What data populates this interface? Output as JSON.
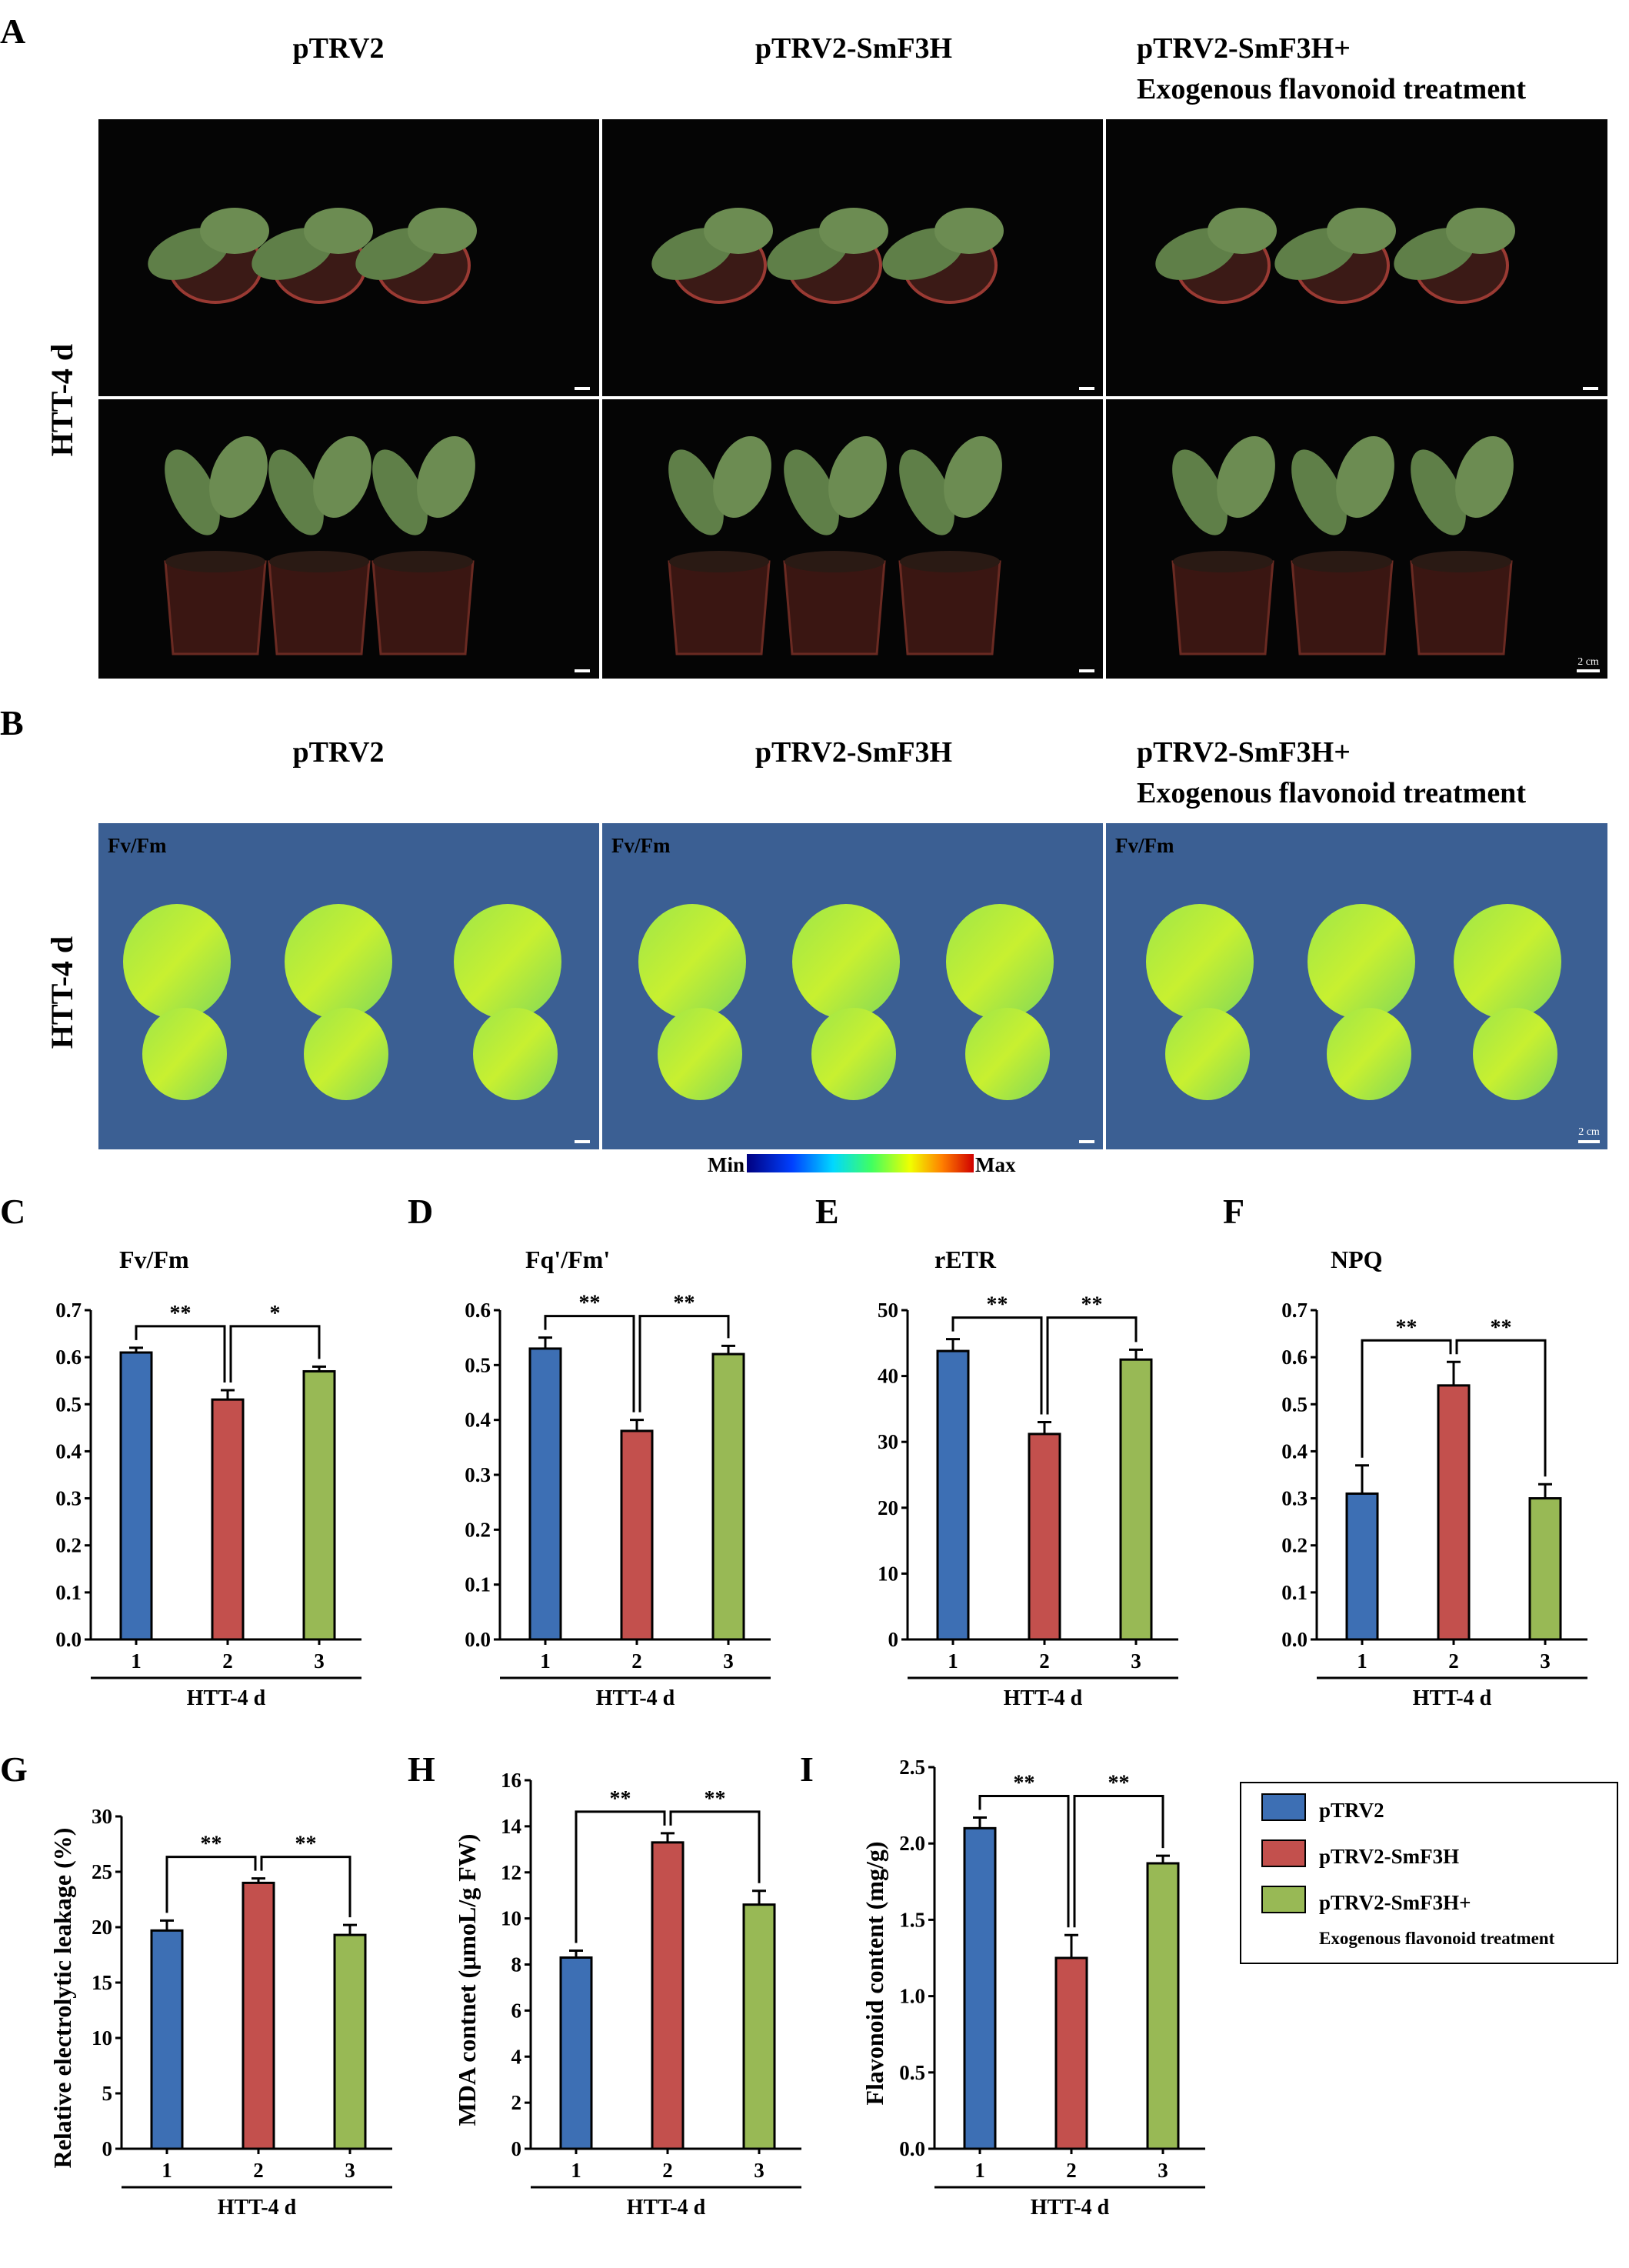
{
  "panel_letters": [
    "A",
    "B",
    "C",
    "D",
    "E",
    "F",
    "G",
    "H",
    "I"
  ],
  "panel_a": {
    "col_titles": [
      "pTRV2",
      "pTRV2-SmF3H",
      "pTRV2-SmF3H+",
      "Exogenous flavonoid treatment"
    ],
    "row_label": "HTT-4 d",
    "scale_text": "2 cm"
  },
  "panel_b": {
    "col_titles": [
      "pTRV2",
      "pTRV2-SmF3H",
      "pTRV2-SmF3H+",
      "Exogenous flavonoid treatment"
    ],
    "row_label": "HTT-4 d",
    "param_label": "Fv/Fm",
    "scale_text": "2 cm",
    "colorbar_min": "Min",
    "colorbar_max": "Max"
  },
  "colors": {
    "pTRV2": "#3d6fb4",
    "pTRV2-SmF3H": "#c3504d",
    "pTRV2-SmF3H+": "#98b955"
  },
  "legend": {
    "items": [
      "pTRV2",
      "pTRV2-SmF3H",
      "pTRV2-SmF3H+",
      "Exogenous flavonoid treatment"
    ]
  },
  "chart_data": [
    {
      "panel": "C",
      "type": "bar",
      "title": "Fv/Fm",
      "ylabel": "",
      "xlabel": "HTT-4 d",
      "categories": [
        "1",
        "2",
        "3"
      ],
      "values": [
        0.61,
        0.51,
        0.57
      ],
      "errors": [
        0.01,
        0.02,
        0.01
      ],
      "ylim": [
        0,
        0.7
      ],
      "yticks": [
        "0.0",
        "0.1",
        "0.2",
        "0.3",
        "0.4",
        "0.5",
        "0.6",
        "0.7"
      ],
      "significance": [
        "**",
        "*"
      ]
    },
    {
      "panel": "D",
      "type": "bar",
      "title": "Fq'/Fm'",
      "ylabel": "",
      "xlabel": "HTT-4 d",
      "categories": [
        "1",
        "2",
        "3"
      ],
      "values": [
        0.53,
        0.38,
        0.52
      ],
      "errors": [
        0.02,
        0.02,
        0.015
      ],
      "ylim": [
        0,
        0.6
      ],
      "yticks": [
        "0.0",
        "0.1",
        "0.2",
        "0.3",
        "0.4",
        "0.5",
        "0.6"
      ],
      "significance": [
        "**",
        "**"
      ]
    },
    {
      "panel": "E",
      "type": "bar",
      "title": "rETR",
      "ylabel": "",
      "xlabel": "HTT-4 d",
      "categories": [
        "1",
        "2",
        "3"
      ],
      "values": [
        43.8,
        31.2,
        42.5
      ],
      "errors": [
        1.8,
        1.8,
        1.5
      ],
      "ylim": [
        0,
        50
      ],
      "yticks": [
        "0",
        "10",
        "20",
        "30",
        "40",
        "50"
      ],
      "significance": [
        "**",
        "**"
      ]
    },
    {
      "panel": "F",
      "type": "bar",
      "title": "NPQ",
      "ylabel": "",
      "xlabel": "HTT-4 d",
      "categories": [
        "1",
        "2",
        "3"
      ],
      "values": [
        0.31,
        0.54,
        0.3
      ],
      "errors": [
        0.06,
        0.05,
        0.03
      ],
      "ylim": [
        0,
        0.7
      ],
      "yticks": [
        "0.0",
        "0.1",
        "0.2",
        "0.3",
        "0.4",
        "0.5",
        "0.6",
        "0.7"
      ],
      "significance": [
        "**",
        "**"
      ]
    },
    {
      "panel": "G",
      "type": "bar",
      "title": "",
      "ylabel": "Relative electrolytic leakage (%)",
      "xlabel": "HTT-4 d",
      "categories": [
        "1",
        "2",
        "3"
      ],
      "values": [
        19.7,
        24.0,
        19.3
      ],
      "errors": [
        0.9,
        0.4,
        0.9
      ],
      "ylim": [
        0,
        30
      ],
      "yticks": [
        "0",
        "5",
        "10",
        "15",
        "20",
        "25",
        "30"
      ],
      "significance": [
        "**",
        "**"
      ]
    },
    {
      "panel": "H",
      "type": "bar",
      "title": "",
      "ylabel": "MDA contnet (μmoL/g FW)",
      "xlabel": "HTT-4 d",
      "categories": [
        "1",
        "2",
        "3"
      ],
      "values": [
        8.3,
        13.3,
        10.6
      ],
      "errors": [
        0.3,
        0.4,
        0.6
      ],
      "ylim": [
        0,
        16
      ],
      "yticks": [
        "0",
        "2",
        "4",
        "6",
        "8",
        "10",
        "12",
        "14",
        "16"
      ],
      "significance": [
        "**",
        "**"
      ]
    },
    {
      "panel": "I",
      "type": "bar",
      "title": "",
      "ylabel": "Flavonoid content (mg/g)",
      "xlabel": "HTT-4 d",
      "categories": [
        "1",
        "2",
        "3"
      ],
      "values": [
        2.1,
        1.25,
        1.87
      ],
      "errors": [
        0.07,
        0.15,
        0.05
      ],
      "ylim": [
        0,
        2.5
      ],
      "yticks": [
        "0.0",
        "0.5",
        "1.0",
        "1.5",
        "2.0",
        "2.5"
      ],
      "significance": [
        "**",
        "**"
      ]
    }
  ]
}
